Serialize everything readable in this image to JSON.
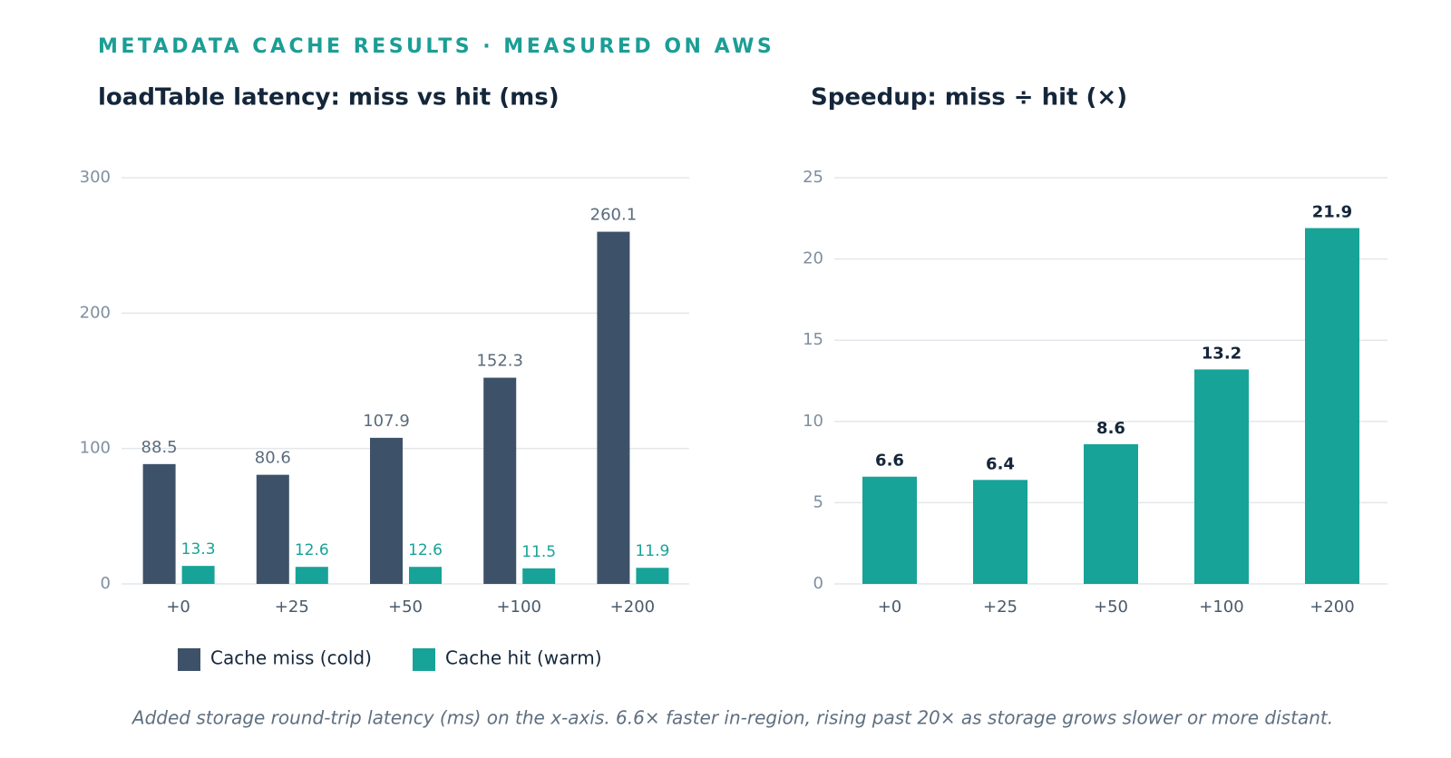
{
  "header": "METADATA CACHE RESULTS · MEASURED ON AWS",
  "caption": "Added storage round-trip latency (ms) on the x-axis. 6.6× faster in-region, rising past 20× as storage grows slower or more distant.",
  "chart_data": [
    {
      "type": "bar",
      "title": "loadTable latency: miss vs hit (ms)",
      "categories": [
        "+0",
        "+25",
        "+50",
        "+100",
        "+200"
      ],
      "series": [
        {
          "name": "Cache miss (cold)",
          "color": "#3d5269",
          "values": [
            88.5,
            80.6,
            107.9,
            152.3,
            260.1
          ]
        },
        {
          "name": "Cache hit (warm)",
          "color": "#17a398",
          "values": [
            13.3,
            12.6,
            12.6,
            11.5,
            11.9
          ]
        }
      ],
      "ylim": [
        0,
        300
      ],
      "yticks": [
        0,
        100,
        200,
        300
      ],
      "grid": true,
      "legend": "bottom"
    },
    {
      "type": "bar",
      "title": "Speedup: miss ÷ hit (×)",
      "categories": [
        "+0",
        "+25",
        "+50",
        "+100",
        "+200"
      ],
      "values": [
        6.6,
        6.4,
        8.6,
        13.2,
        21.9
      ],
      "color": "#17a398",
      "ylim": [
        0,
        25
      ],
      "yticks": [
        0,
        5,
        10,
        15,
        20,
        25
      ],
      "grid": true
    }
  ]
}
